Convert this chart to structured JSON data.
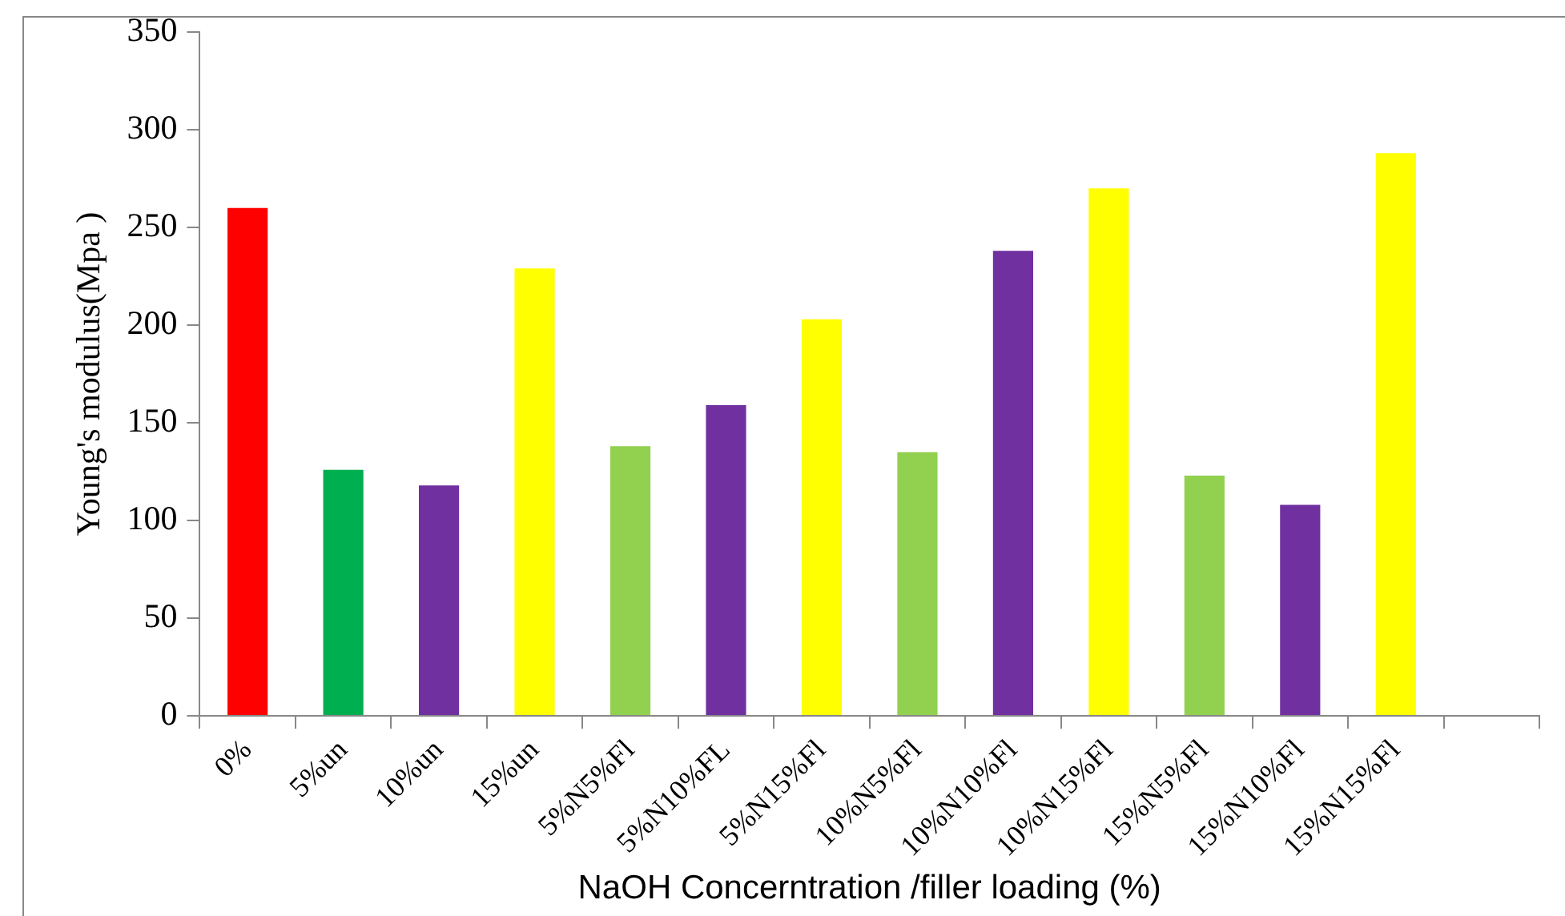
{
  "chart_data": {
    "type": "bar",
    "xlabel": "NaOH Concerntration /filler loading (%)",
    "ylabel": "Young's modulus(Mpa )",
    "categories": [
      "0%",
      "5%un",
      "10%un",
      "15%un",
      "5%N5%Fl",
      "5%N10%FL",
      "5%N15%Fl",
      "10%N5%Fl",
      "10%N10%Fl",
      "10%N15%Fl",
      "15%N5%Fl",
      "15%N10%Fl",
      "15%N15%Fl",
      null
    ],
    "values": [
      260,
      126,
      118,
      229,
      138,
      159,
      203,
      135,
      238,
      270,
      123,
      108,
      288,
      null
    ],
    "colors": [
      "#ff0000",
      "#00b050",
      "#7030a0",
      "#ffff00",
      "#92d050",
      "#7030a0",
      "#ffff00",
      "#92d050",
      "#7030a0",
      "#ffff00",
      "#92d050",
      "#7030a0",
      "#ffff00",
      "#ffff00"
    ],
    "ylim": [
      0,
      350
    ],
    "yticks": [
      0,
      50,
      100,
      150,
      200,
      250,
      300,
      350
    ],
    "grid": false,
    "legend": false
  }
}
